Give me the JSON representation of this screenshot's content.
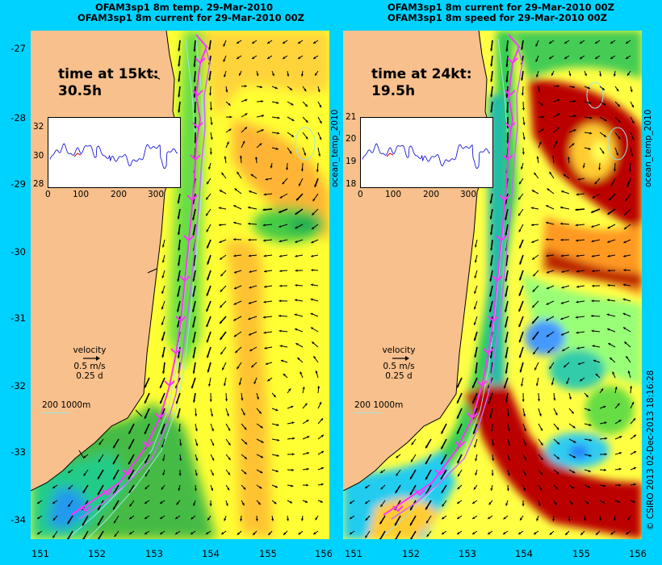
{
  "headers": {
    "left_line1": "OFAM3sp1 8m temp. 29-Mar-2010",
    "left_line2": "OFAM3sp1 8m current for 29-Mar-2010 00Z",
    "right_line1": "OFAM3sp1 8m current for 29-Mar-2010 00Z",
    "right_line2": "OFAM3sp1 8m speed for 29-Mar-2010 00Z"
  },
  "y_axis_ticks": [
    "-27",
    "-28",
    "-29",
    "-30",
    "-31",
    "-32",
    "-33",
    "-34"
  ],
  "x_axis_ticks": [
    "151",
    "152",
    "153",
    "154",
    "155",
    "156"
  ],
  "left_panel": {
    "time_label": "time at 15kt:",
    "time_value": "30.5h",
    "inset": {
      "y_ticks": [
        "32",
        "30",
        "28"
      ],
      "x_ticks": [
        "0",
        "100",
        "200",
        "300"
      ]
    }
  },
  "right_panel": {
    "time_label": "time at 24kt:",
    "time_value": "19.5h",
    "inset": {
      "y_ticks": [
        "21",
        "20",
        "19",
        "18"
      ],
      "x_ticks": [
        "0",
        "100",
        "200",
        "300"
      ]
    }
  },
  "inset_side_label": "ocean_temp_2010",
  "velocity_legend": {
    "title": "velocity",
    "speed": "0.5 m/s",
    "duration": "0.25 d"
  },
  "depth_legend": {
    "text": "200  1000m"
  },
  "credit": "© CSIRO 2013  02-Dec-2013 18:16:28",
  "colors": {
    "background": "#00d2ff",
    "land": "#f7c08c",
    "track": "#ff33ff"
  }
}
